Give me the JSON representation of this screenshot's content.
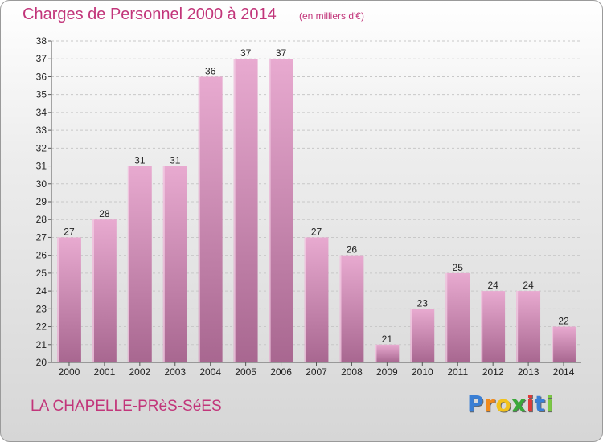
{
  "chart_data": {
    "type": "bar",
    "title": "Charges de Personnel 2000 à 2014",
    "subtitle": "(en milliers d'€)",
    "categories": [
      "2000",
      "2001",
      "2002",
      "2003",
      "2004",
      "2005",
      "2006",
      "2007",
      "2008",
      "2009",
      "2010",
      "2011",
      "2012",
      "2013",
      "2014"
    ],
    "values": [
      27,
      28,
      31,
      31,
      36,
      37,
      37,
      27,
      26,
      21,
      23,
      25,
      24,
      24,
      22
    ],
    "ylim": [
      20,
      38
    ],
    "yticks": [
      "20",
      "21",
      "22",
      "23",
      "24",
      "25",
      "26",
      "27",
      "28",
      "29",
      "30",
      "31",
      "32",
      "33",
      "34",
      "35",
      "36",
      "37",
      "38"
    ],
    "grid": true,
    "colors": {
      "bar_light": "#e8aad0",
      "bar_dark": "#a86790",
      "accent": "#c2357a"
    }
  },
  "footer": {
    "place": "LA CHAPELLE-PRèS-SéES",
    "logo_letters": [
      "P",
      "r",
      "o",
      "x",
      "i",
      "t",
      "i"
    ],
    "logo_colors": [
      "#3a7fd5",
      "#f08a1c",
      "#f2c21b",
      "#3aa83a",
      "#e03a3a",
      "#3a7fd5",
      "#7ac943"
    ]
  }
}
